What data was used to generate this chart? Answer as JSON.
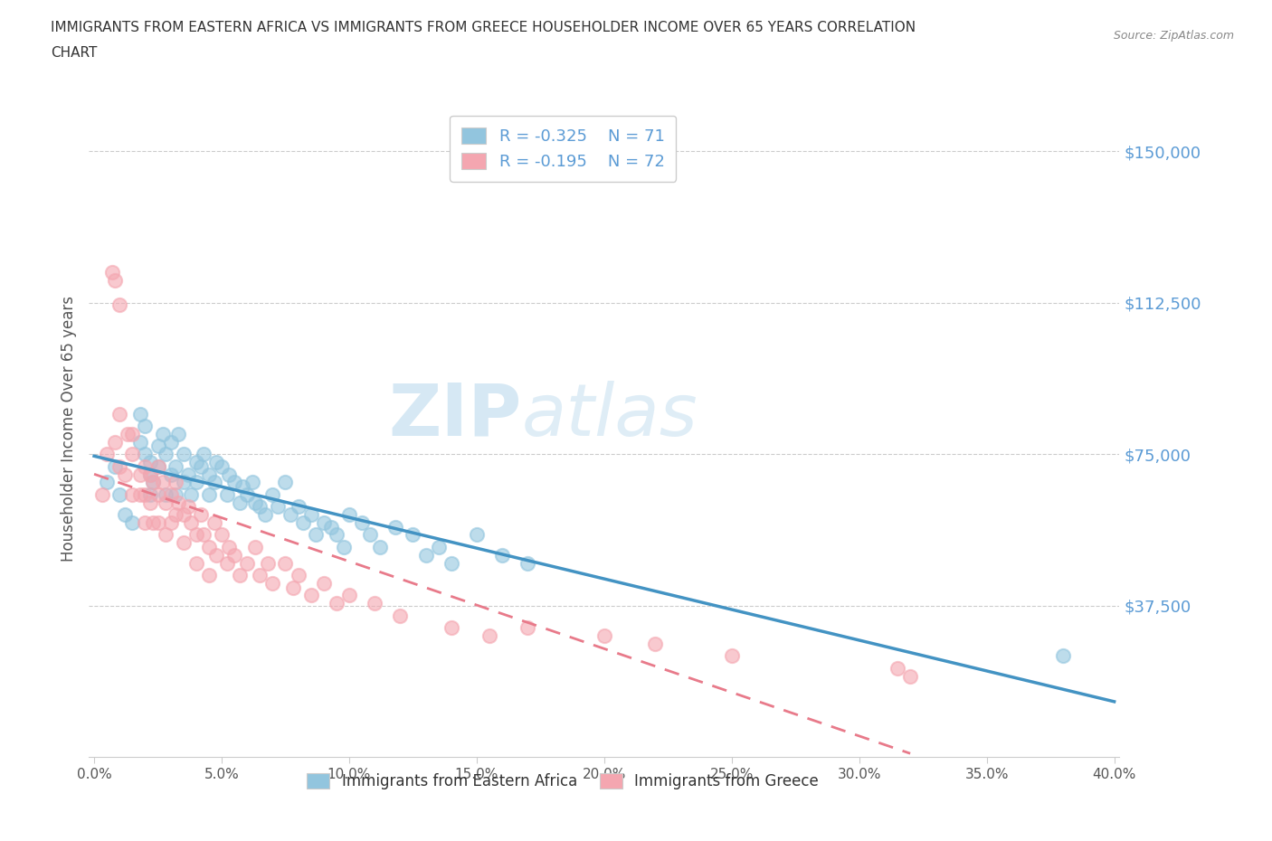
{
  "title_line1": "IMMIGRANTS FROM EASTERN AFRICA VS IMMIGRANTS FROM GREECE HOUSEHOLDER INCOME OVER 65 YEARS CORRELATION",
  "title_line2": "CHART",
  "source": "Source: ZipAtlas.com",
  "ylabel": "Householder Income Over 65 years",
  "xlim": [
    -0.002,
    0.402
  ],
  "ylim": [
    0,
    162500
  ],
  "yticks": [
    37500,
    75000,
    112500,
    150000
  ],
  "ytick_labels": [
    "$37,500",
    "$75,000",
    "$112,500",
    "$150,000"
  ],
  "xticks": [
    0.0,
    0.05,
    0.1,
    0.15,
    0.2,
    0.25,
    0.3,
    0.35,
    0.4
  ],
  "xtick_labels": [
    "0.0%",
    "5.0%",
    "10.0%",
    "15.0%",
    "20.0%",
    "25.0%",
    "30.0%",
    "35.0%",
    "40.0%"
  ],
  "watermark_zip": "ZIP",
  "watermark_atlas": "atlas",
  "legend_labels": [
    "Immigrants from Eastern Africa",
    "Immigrants from Greece"
  ],
  "scatter_color_africa": "#92c5de",
  "scatter_color_greece": "#f4a6b0",
  "line_color_africa": "#4393c3",
  "line_color_greece": "#e87a8a",
  "line_color_greece_dash": "#cccccc",
  "R_africa": -0.325,
  "N_africa": 71,
  "R_greece": -0.195,
  "N_greece": 72,
  "africa_x": [
    0.005,
    0.008,
    0.01,
    0.012,
    0.015,
    0.018,
    0.018,
    0.02,
    0.02,
    0.022,
    0.022,
    0.022,
    0.023,
    0.025,
    0.025,
    0.027,
    0.028,
    0.028,
    0.03,
    0.03,
    0.032,
    0.032,
    0.033,
    0.035,
    0.035,
    0.037,
    0.038,
    0.04,
    0.04,
    0.042,
    0.043,
    0.045,
    0.045,
    0.047,
    0.048,
    0.05,
    0.052,
    0.053,
    0.055,
    0.057,
    0.058,
    0.06,
    0.062,
    0.063,
    0.065,
    0.067,
    0.07,
    0.072,
    0.075,
    0.077,
    0.08,
    0.082,
    0.085,
    0.087,
    0.09,
    0.093,
    0.095,
    0.098,
    0.1,
    0.105,
    0.108,
    0.112,
    0.118,
    0.125,
    0.13,
    0.135,
    0.14,
    0.15,
    0.16,
    0.17,
    0.38
  ],
  "africa_y": [
    68000,
    72000,
    65000,
    60000,
    58000,
    78000,
    85000,
    75000,
    82000,
    70000,
    65000,
    73000,
    68000,
    77000,
    72000,
    80000,
    75000,
    65000,
    78000,
    70000,
    72000,
    65000,
    80000,
    75000,
    68000,
    70000,
    65000,
    73000,
    68000,
    72000,
    75000,
    70000,
    65000,
    68000,
    73000,
    72000,
    65000,
    70000,
    68000,
    63000,
    67000,
    65000,
    68000,
    63000,
    62000,
    60000,
    65000,
    62000,
    68000,
    60000,
    62000,
    58000,
    60000,
    55000,
    58000,
    57000,
    55000,
    52000,
    60000,
    58000,
    55000,
    52000,
    57000,
    55000,
    50000,
    52000,
    48000,
    55000,
    50000,
    48000,
    25000
  ],
  "greece_x": [
    0.003,
    0.005,
    0.007,
    0.008,
    0.008,
    0.01,
    0.01,
    0.01,
    0.012,
    0.013,
    0.015,
    0.015,
    0.015,
    0.018,
    0.018,
    0.02,
    0.02,
    0.02,
    0.022,
    0.022,
    0.023,
    0.023,
    0.025,
    0.025,
    0.025,
    0.027,
    0.028,
    0.028,
    0.03,
    0.03,
    0.032,
    0.032,
    0.033,
    0.035,
    0.035,
    0.037,
    0.038,
    0.04,
    0.04,
    0.042,
    0.043,
    0.045,
    0.045,
    0.047,
    0.048,
    0.05,
    0.052,
    0.053,
    0.055,
    0.057,
    0.06,
    0.063,
    0.065,
    0.068,
    0.07,
    0.075,
    0.078,
    0.08,
    0.085,
    0.09,
    0.095,
    0.1,
    0.11,
    0.12,
    0.14,
    0.155,
    0.17,
    0.2,
    0.22,
    0.25,
    0.315,
    0.32
  ],
  "greece_y": [
    65000,
    75000,
    120000,
    118000,
    78000,
    112000,
    72000,
    85000,
    70000,
    80000,
    75000,
    65000,
    80000,
    70000,
    65000,
    72000,
    65000,
    58000,
    70000,
    63000,
    68000,
    58000,
    72000,
    65000,
    58000,
    68000,
    63000,
    55000,
    65000,
    58000,
    68000,
    60000,
    63000,
    60000,
    53000,
    62000,
    58000,
    55000,
    48000,
    60000,
    55000,
    52000,
    45000,
    58000,
    50000,
    55000,
    48000,
    52000,
    50000,
    45000,
    48000,
    52000,
    45000,
    48000,
    43000,
    48000,
    42000,
    45000,
    40000,
    43000,
    38000,
    40000,
    38000,
    35000,
    32000,
    30000,
    32000,
    30000,
    28000,
    25000,
    22000,
    20000
  ]
}
